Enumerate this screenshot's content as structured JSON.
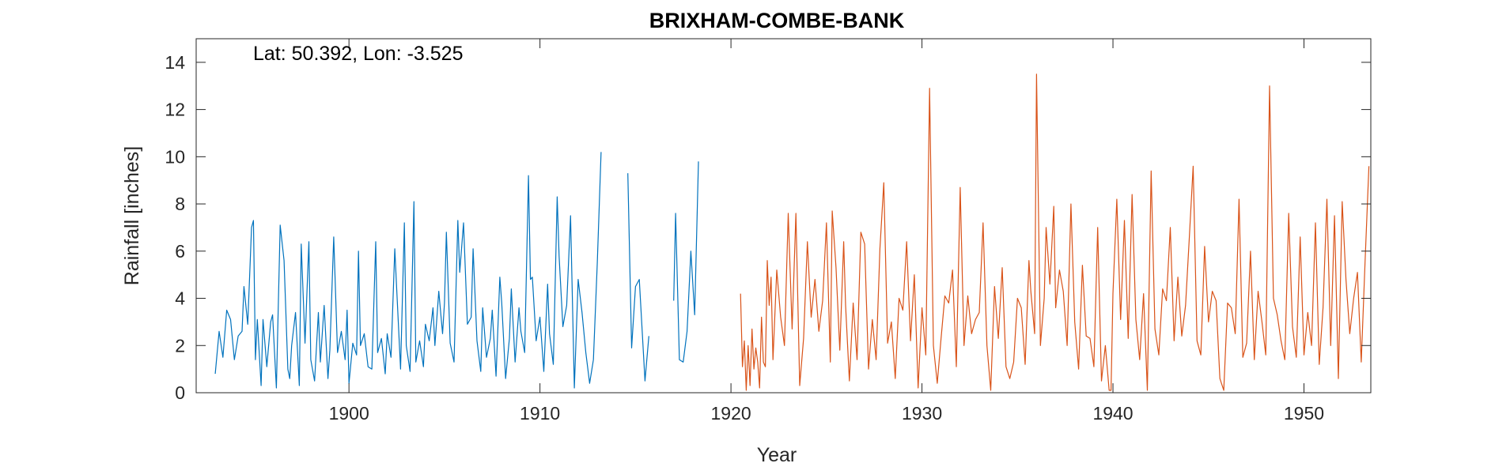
{
  "chart_data": {
    "type": "line",
    "title": "BRIXHAM-COMBE-BANK",
    "xlabel": "Year",
    "ylabel": "Rainfall [inches]",
    "annotation": "Lat: 50.392, Lon: -3.525",
    "xlim": [
      1892,
      1953.5
    ],
    "ylim": [
      0,
      15
    ],
    "xticks": [
      1900,
      1910,
      1920,
      1930,
      1940,
      1950
    ],
    "yticks": [
      0,
      2,
      4,
      6,
      8,
      10,
      12,
      14
    ],
    "grid": false,
    "series": [
      {
        "color": "#0072BD",
        "points": [
          [
            1893.0,
            0.8
          ],
          [
            1893.2,
            2.6
          ],
          [
            1893.4,
            1.5
          ],
          [
            1893.6,
            3.5
          ],
          [
            1893.8,
            3.1
          ],
          [
            1894.0,
            1.4
          ],
          [
            1894.2,
            2.4
          ],
          [
            1894.4,
            2.6
          ],
          [
            1894.5,
            4.5
          ],
          [
            1894.7,
            2.9
          ],
          [
            1894.9,
            7.0
          ],
          [
            1895.0,
            7.3
          ],
          [
            1895.1,
            1.4
          ],
          [
            1895.2,
            3.1
          ],
          [
            1895.4,
            0.3
          ],
          [
            1895.5,
            3.1
          ],
          [
            1895.7,
            1.1
          ],
          [
            1895.9,
            3.0
          ],
          [
            1896.0,
            3.3
          ],
          [
            1896.2,
            0.2
          ],
          [
            1896.4,
            7.1
          ],
          [
            1896.6,
            5.6
          ],
          [
            1896.8,
            1.0
          ],
          [
            1896.9,
            0.6
          ],
          [
            1897.0,
            2.0
          ],
          [
            1897.2,
            3.4
          ],
          [
            1897.4,
            0.3
          ],
          [
            1897.5,
            6.3
          ],
          [
            1897.7,
            2.1
          ],
          [
            1897.9,
            6.4
          ],
          [
            1898.0,
            1.4
          ],
          [
            1898.2,
            0.5
          ],
          [
            1898.4,
            3.4
          ],
          [
            1898.5,
            1.3
          ],
          [
            1898.7,
            3.7
          ],
          [
            1898.9,
            0.6
          ],
          [
            1899.0,
            1.8
          ],
          [
            1899.2,
            6.6
          ],
          [
            1899.4,
            1.7
          ],
          [
            1899.6,
            2.6
          ],
          [
            1899.8,
            1.4
          ],
          [
            1899.9,
            3.5
          ],
          [
            1900.0,
            0.4
          ],
          [
            1900.2,
            2.1
          ],
          [
            1900.4,
            1.6
          ],
          [
            1900.5,
            6.0
          ],
          [
            1900.6,
            2.0
          ],
          [
            1900.8,
            2.5
          ],
          [
            1901.0,
            1.1
          ],
          [
            1901.2,
            1.0
          ],
          [
            1901.4,
            6.4
          ],
          [
            1901.5,
            1.7
          ],
          [
            1901.7,
            2.3
          ],
          [
            1901.9,
            0.8
          ],
          [
            1902.0,
            2.5
          ],
          [
            1902.2,
            1.5
          ],
          [
            1902.4,
            6.1
          ],
          [
            1902.5,
            4.4
          ],
          [
            1902.7,
            1.0
          ],
          [
            1902.9,
            7.2
          ],
          [
            1903.0,
            2.0
          ],
          [
            1903.2,
            0.9
          ],
          [
            1903.4,
            8.1
          ],
          [
            1903.5,
            1.3
          ],
          [
            1903.7,
            2.2
          ],
          [
            1903.9,
            1.1
          ],
          [
            1904.0,
            2.9
          ],
          [
            1904.2,
            2.2
          ],
          [
            1904.4,
            3.6
          ],
          [
            1904.5,
            2.0
          ],
          [
            1904.7,
            4.3
          ],
          [
            1904.9,
            2.5
          ],
          [
            1905.0,
            3.8
          ],
          [
            1905.1,
            6.8
          ],
          [
            1905.3,
            2.1
          ],
          [
            1905.5,
            1.3
          ],
          [
            1905.7,
            7.3
          ],
          [
            1905.8,
            5.1
          ],
          [
            1906.0,
            7.2
          ],
          [
            1906.2,
            2.9
          ],
          [
            1906.4,
            3.2
          ],
          [
            1906.5,
            6.1
          ],
          [
            1906.7,
            2.2
          ],
          [
            1906.9,
            0.9
          ],
          [
            1907.0,
            3.6
          ],
          [
            1907.2,
            1.5
          ],
          [
            1907.4,
            2.3
          ],
          [
            1907.5,
            3.5
          ],
          [
            1907.7,
            0.7
          ],
          [
            1907.9,
            4.9
          ],
          [
            1908.0,
            3.8
          ],
          [
            1908.2,
            0.6
          ],
          [
            1908.4,
            2.3
          ],
          [
            1908.5,
            4.4
          ],
          [
            1908.7,
            1.3
          ],
          [
            1908.9,
            3.6
          ],
          [
            1909.0,
            2.6
          ],
          [
            1909.2,
            1.7
          ],
          [
            1909.4,
            9.2
          ],
          [
            1909.5,
            4.8
          ],
          [
            1909.6,
            4.9
          ],
          [
            1909.8,
            2.2
          ],
          [
            1910.0,
            3.2
          ],
          [
            1910.2,
            0.9
          ],
          [
            1910.4,
            4.6
          ],
          [
            1910.5,
            2.5
          ],
          [
            1910.7,
            1.2
          ],
          [
            1910.9,
            8.3
          ],
          [
            1911.0,
            5.8
          ],
          [
            1911.2,
            2.8
          ],
          [
            1911.4,
            3.7
          ],
          [
            1911.6,
            7.5
          ],
          [
            1911.8,
            0.2
          ],
          [
            1912.0,
            4.8
          ],
          [
            1912.2,
            3.4
          ],
          [
            1912.4,
            1.7
          ],
          [
            1912.6,
            0.4
          ],
          [
            1912.8,
            1.4
          ],
          [
            1913.0,
            5.5
          ],
          [
            1913.2,
            10.2
          ],
          [
            null,
            null
          ],
          [
            1914.6,
            9.3
          ],
          [
            1914.8,
            1.9
          ],
          [
            1915.0,
            4.5
          ],
          [
            1915.2,
            4.8
          ],
          [
            1915.5,
            0.5
          ],
          [
            1915.7,
            2.4
          ],
          [
            null,
            null
          ],
          [
            1917.0,
            3.9
          ],
          [
            1917.1,
            7.6
          ],
          [
            1917.3,
            1.4
          ],
          [
            1917.5,
            1.3
          ],
          [
            1917.7,
            2.6
          ],
          [
            1917.9,
            6.0
          ],
          [
            1918.1,
            3.3
          ],
          [
            1918.3,
            9.8
          ]
        ]
      },
      {
        "color": "#D95319",
        "points": [
          [
            1920.5,
            4.2
          ],
          [
            1920.6,
            1.1
          ],
          [
            1920.7,
            2.2
          ],
          [
            1920.8,
            0.1
          ],
          [
            1920.9,
            2.0
          ],
          [
            1921.0,
            0.3
          ],
          [
            1921.1,
            2.7
          ],
          [
            1921.2,
            1.0
          ],
          [
            1921.3,
            1.9
          ],
          [
            1921.4,
            1.3
          ],
          [
            1921.5,
            0.2
          ],
          [
            1921.6,
            3.2
          ],
          [
            1921.7,
            1.3
          ],
          [
            1921.8,
            1.1
          ],
          [
            1921.9,
            5.6
          ],
          [
            1922.0,
            3.7
          ],
          [
            1922.1,
            4.9
          ],
          [
            1922.2,
            1.4
          ],
          [
            1922.4,
            5.2
          ],
          [
            1922.6,
            3.2
          ],
          [
            1922.8,
            2.0
          ],
          [
            1923.0,
            7.6
          ],
          [
            1923.2,
            2.7
          ],
          [
            1923.4,
            7.6
          ],
          [
            1923.6,
            0.3
          ],
          [
            1923.8,
            2.3
          ],
          [
            1924.0,
            6.4
          ],
          [
            1924.2,
            3.2
          ],
          [
            1924.4,
            4.8
          ],
          [
            1924.6,
            2.6
          ],
          [
            1924.8,
            3.9
          ],
          [
            1925.0,
            7.2
          ],
          [
            1925.2,
            1.3
          ],
          [
            1925.3,
            7.7
          ],
          [
            1925.5,
            5.3
          ],
          [
            1925.7,
            1.8
          ],
          [
            1925.9,
            6.4
          ],
          [
            1926.0,
            3.7
          ],
          [
            1926.2,
            0.5
          ],
          [
            1926.4,
            3.8
          ],
          [
            1926.6,
            1.4
          ],
          [
            1926.8,
            6.8
          ],
          [
            1927.0,
            6.3
          ],
          [
            1927.2,
            1.0
          ],
          [
            1927.4,
            3.1
          ],
          [
            1927.6,
            1.4
          ],
          [
            1927.8,
            6.1
          ],
          [
            1928.0,
            8.9
          ],
          [
            1928.2,
            2.1
          ],
          [
            1928.4,
            3.0
          ],
          [
            1928.6,
            0.6
          ],
          [
            1928.8,
            4.0
          ],
          [
            1929.0,
            3.5
          ],
          [
            1929.2,
            6.4
          ],
          [
            1929.4,
            2.2
          ],
          [
            1929.6,
            5.0
          ],
          [
            1929.8,
            0.2
          ],
          [
            1930.0,
            3.6
          ],
          [
            1930.2,
            1.6
          ],
          [
            1930.4,
            12.9
          ],
          [
            1930.6,
            2.0
          ],
          [
            1930.8,
            0.4
          ],
          [
            1931.0,
            2.3
          ],
          [
            1931.2,
            4.1
          ],
          [
            1931.4,
            3.8
          ],
          [
            1931.6,
            5.2
          ],
          [
            1931.8,
            1.1
          ],
          [
            1932.0,
            8.7
          ],
          [
            1932.2,
            2.0
          ],
          [
            1932.4,
            4.1
          ],
          [
            1932.6,
            2.5
          ],
          [
            1932.8,
            3.1
          ],
          [
            1933.0,
            3.4
          ],
          [
            1933.2,
            7.2
          ],
          [
            1933.4,
            2.0
          ],
          [
            1933.6,
            0.1
          ],
          [
            1933.8,
            4.5
          ],
          [
            1934.0,
            2.3
          ],
          [
            1934.2,
            5.3
          ],
          [
            1934.4,
            1.1
          ],
          [
            1934.6,
            0.6
          ],
          [
            1934.8,
            1.3
          ],
          [
            1935.0,
            4.0
          ],
          [
            1935.2,
            3.6
          ],
          [
            1935.4,
            1.2
          ],
          [
            1935.6,
            5.6
          ],
          [
            1935.7,
            4.3
          ],
          [
            1935.9,
            2.5
          ],
          [
            1936.0,
            13.5
          ],
          [
            1936.2,
            2.0
          ],
          [
            1936.4,
            4.0
          ],
          [
            1936.5,
            7.0
          ],
          [
            1936.7,
            4.6
          ],
          [
            1936.9,
            7.9
          ],
          [
            1937.0,
            3.6
          ],
          [
            1937.2,
            5.2
          ],
          [
            1937.4,
            4.3
          ],
          [
            1937.6,
            2.0
          ],
          [
            1937.8,
            8.0
          ],
          [
            1938.0,
            3.0
          ],
          [
            1938.2,
            1.0
          ],
          [
            1938.4,
            5.4
          ],
          [
            1938.6,
            2.4
          ],
          [
            1938.8,
            2.3
          ],
          [
            1939.0,
            1.1
          ],
          [
            1939.2,
            7.0
          ],
          [
            1939.4,
            0.5
          ],
          [
            1939.6,
            2.0
          ],
          [
            1939.8,
            0.1
          ],
          [
            1939.9,
            0.1
          ],
          [
            1940.0,
            4.2
          ],
          [
            1940.2,
            8.2
          ],
          [
            1940.4,
            3.1
          ],
          [
            1940.6,
            7.3
          ],
          [
            1940.8,
            2.3
          ],
          [
            1941.0,
            8.4
          ],
          [
            1941.2,
            3.1
          ],
          [
            1941.4,
            1.4
          ],
          [
            1941.6,
            4.2
          ],
          [
            1941.8,
            0.1
          ],
          [
            1942.0,
            9.4
          ],
          [
            1942.2,
            2.7
          ],
          [
            1942.4,
            1.6
          ],
          [
            1942.6,
            4.4
          ],
          [
            1942.8,
            3.9
          ],
          [
            1943.0,
            7.0
          ],
          [
            1943.2,
            2.2
          ],
          [
            1943.4,
            4.9
          ],
          [
            1943.6,
            2.4
          ],
          [
            1943.8,
            3.7
          ],
          [
            1944.0,
            6.6
          ],
          [
            1944.2,
            9.6
          ],
          [
            1944.4,
            2.2
          ],
          [
            1944.6,
            1.6
          ],
          [
            1944.8,
            6.2
          ],
          [
            1945.0,
            3.0
          ],
          [
            1945.2,
            4.3
          ],
          [
            1945.4,
            3.9
          ],
          [
            1945.6,
            0.6
          ],
          [
            1945.8,
            0.1
          ],
          [
            1946.0,
            3.8
          ],
          [
            1946.2,
            3.6
          ],
          [
            1946.4,
            2.5
          ],
          [
            1946.6,
            8.2
          ],
          [
            1946.8,
            1.5
          ],
          [
            1947.0,
            2.1
          ],
          [
            1947.2,
            6.0
          ],
          [
            1947.4,
            1.4
          ],
          [
            1947.6,
            4.3
          ],
          [
            1947.8,
            3.0
          ],
          [
            1948.0,
            1.6
          ],
          [
            1948.2,
            13.0
          ],
          [
            1948.4,
            4.0
          ],
          [
            1948.6,
            3.3
          ],
          [
            1948.8,
            2.2
          ],
          [
            1949.0,
            1.4
          ],
          [
            1949.2,
            7.6
          ],
          [
            1949.4,
            2.8
          ],
          [
            1949.6,
            1.5
          ],
          [
            1949.8,
            6.6
          ],
          [
            1950.0,
            1.6
          ],
          [
            1950.2,
            3.4
          ],
          [
            1950.4,
            2.0
          ],
          [
            1950.6,
            7.2
          ],
          [
            1950.8,
            1.2
          ],
          [
            1951.0,
            3.6
          ],
          [
            1951.2,
            8.2
          ],
          [
            1951.4,
            2.0
          ],
          [
            1951.6,
            7.5
          ],
          [
            1951.8,
            0.6
          ],
          [
            1952.0,
            8.1
          ],
          [
            1952.2,
            4.8
          ],
          [
            1952.4,
            2.5
          ],
          [
            1952.6,
            4.0
          ],
          [
            1952.8,
            5.1
          ],
          [
            1953.0,
            1.3
          ],
          [
            1953.2,
            5.6
          ],
          [
            1953.4,
            9.6
          ]
        ]
      }
    ]
  }
}
